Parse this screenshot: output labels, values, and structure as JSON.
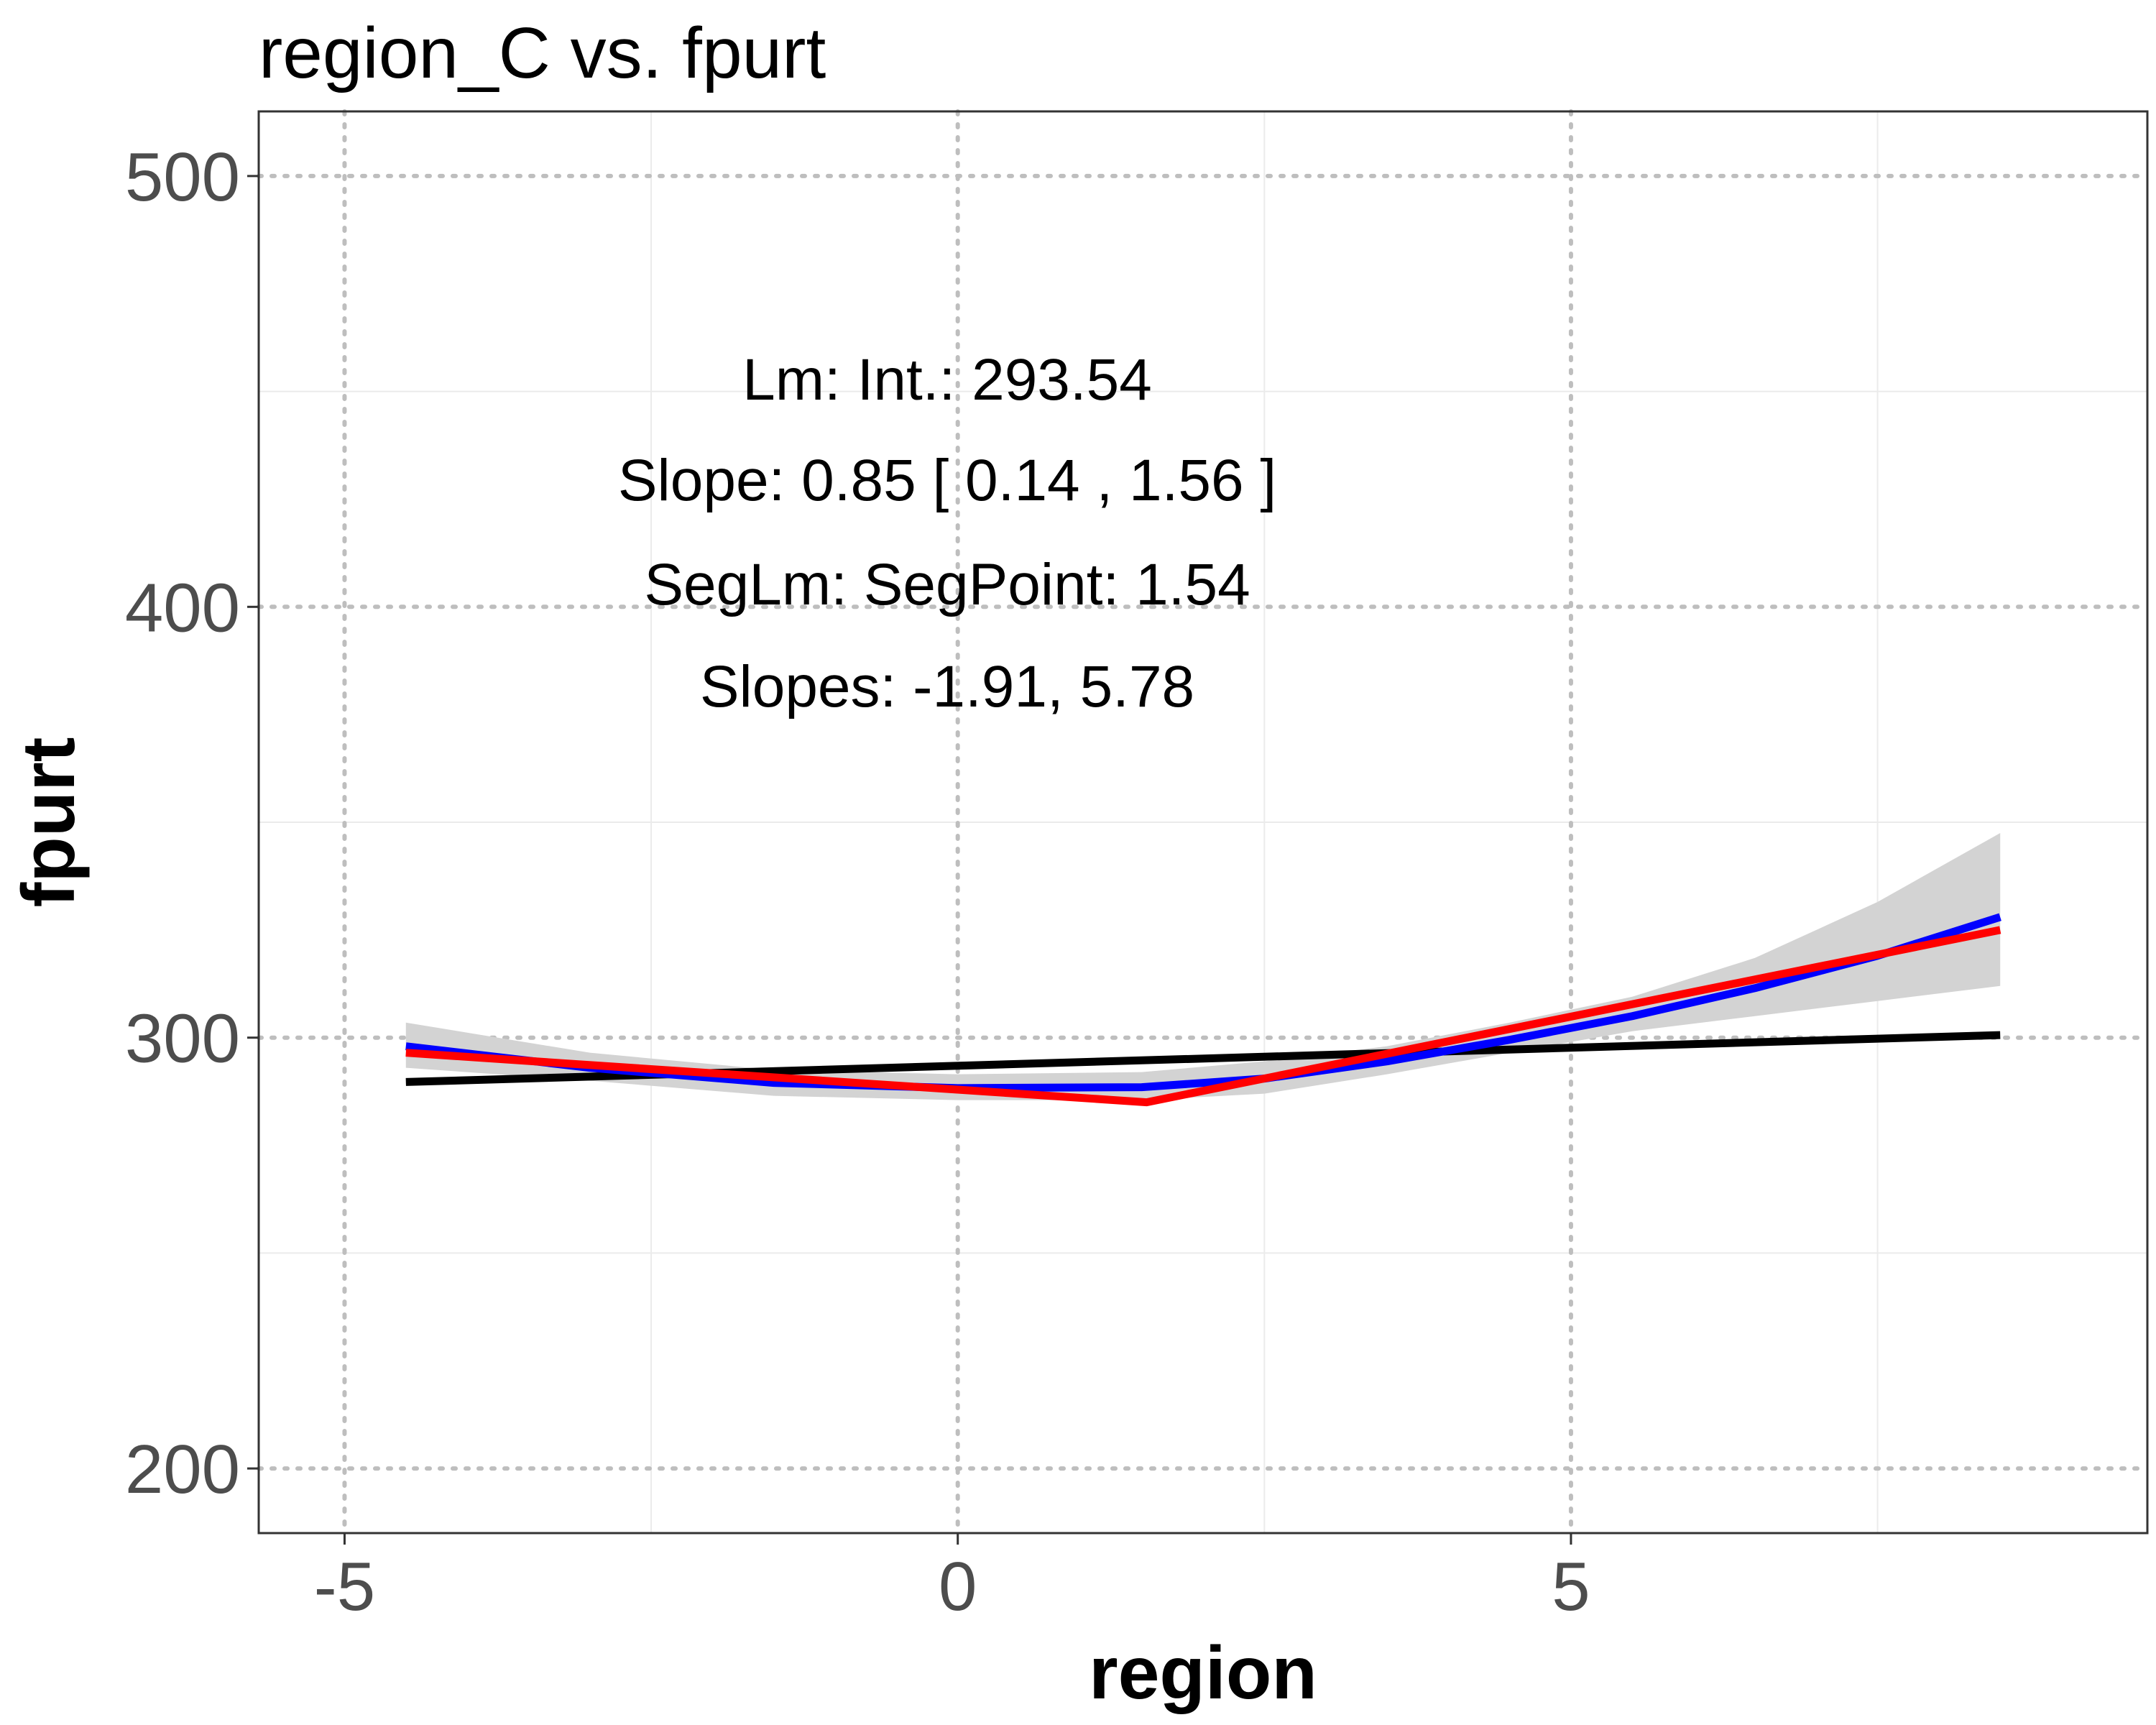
{
  "chart_data": {
    "type": "line",
    "title": "region_C vs. fpurt",
    "xlabel": "region",
    "ylabel": "fpurt",
    "xlim": [
      -5.7,
      9.7
    ],
    "ylim": [
      185,
      515
    ],
    "x_ticks": [
      -5,
      0,
      5
    ],
    "y_ticks": [
      200,
      300,
      400,
      500
    ],
    "x_minor_ticks": [
      -2.5,
      2.5,
      7.5
    ],
    "y_minor_ticks": [
      250,
      350,
      450
    ],
    "grid": true,
    "legend": "none",
    "annotations": [
      "Lm: Int.: 293.54",
      "Slope: 0.85 [ 0.14 , 1.56 ]",
      "SegLm: SegPoint: 1.54",
      "Slopes: -1.91, 5.78"
    ],
    "series": [
      {
        "key": "lm",
        "color": "#000000",
        "x": [
          -4.5,
          8.5
        ],
        "y": [
          289.7,
          300.6
        ]
      },
      {
        "key": "loess",
        "color": "#0000ff",
        "x": [
          -4.5,
          -3.0,
          -1.5,
          0.0,
          1.5,
          2.5,
          3.5,
          4.5,
          5.5,
          6.5,
          7.5,
          8.5
        ],
        "y": [
          298.0,
          293.0,
          289.5,
          288.3,
          288.5,
          290.5,
          294.5,
          299.5,
          305.0,
          311.5,
          319.0,
          328.0
        ]
      },
      {
        "key": "seglm",
        "color": "#ff0000",
        "x": [
          -4.5,
          1.54,
          8.5
        ],
        "y": [
          296.5,
          285.0,
          325.0
        ]
      }
    ],
    "ribbon": {
      "color": "#d3d3d3",
      "x": [
        -4.5,
        -3.0,
        -1.5,
        0.0,
        1.5,
        2.5,
        3.5,
        4.5,
        5.5,
        6.5,
        7.5,
        8.5
      ],
      "lower": [
        293.0,
        290.0,
        286.5,
        285.5,
        285.5,
        287.0,
        291.5,
        296.5,
        301.5,
        305.0,
        308.5,
        312.0
      ],
      "upper": [
        303.5,
        296.5,
        292.5,
        291.5,
        292.0,
        294.5,
        298.0,
        303.5,
        309.5,
        318.5,
        331.5,
        347.5
      ]
    }
  }
}
